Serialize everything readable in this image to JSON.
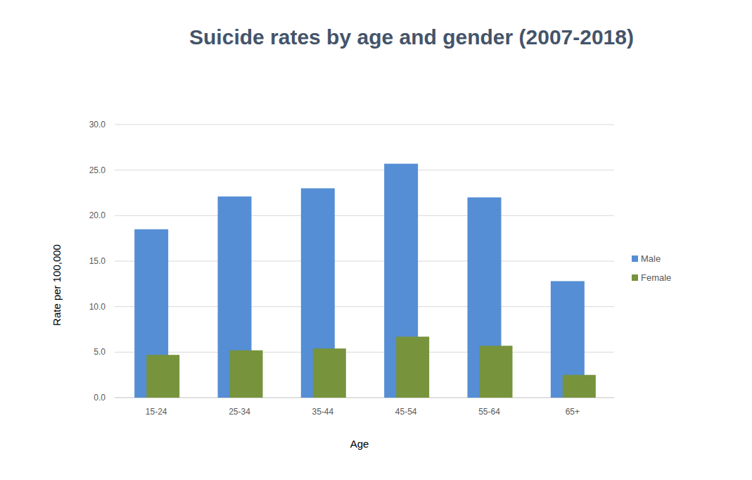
{
  "chart_data": {
    "type": "bar",
    "title": "Suicide rates by age and gender (2007-2018)",
    "x_label": "Age",
    "y_label": "Rate per 100,000",
    "categories": [
      "15-24",
      "25-34",
      "35-44",
      "45-54",
      "55-64",
      "65+"
    ],
    "series": [
      {
        "name": "Male",
        "color": "#558ed5",
        "values": [
          18.5,
          22.1,
          23.0,
          25.7,
          22.0,
          12.8
        ]
      },
      {
        "name": "Female",
        "color": "#77933c",
        "values": [
          4.7,
          5.2,
          5.4,
          6.7,
          5.7,
          2.5
        ]
      }
    ],
    "ylim": [
      0,
      30
    ],
    "yticks": [
      {
        "value": 0,
        "label": "0.0"
      },
      {
        "value": 5,
        "label": "5.0"
      },
      {
        "value": 10,
        "label": "10.0"
      },
      {
        "value": 15,
        "label": "15.0"
      },
      {
        "value": 20,
        "label": "20.0"
      },
      {
        "value": 25,
        "label": "25.0"
      },
      {
        "value": 30,
        "label": "30.0"
      }
    ],
    "grid": true,
    "legend": "right"
  }
}
